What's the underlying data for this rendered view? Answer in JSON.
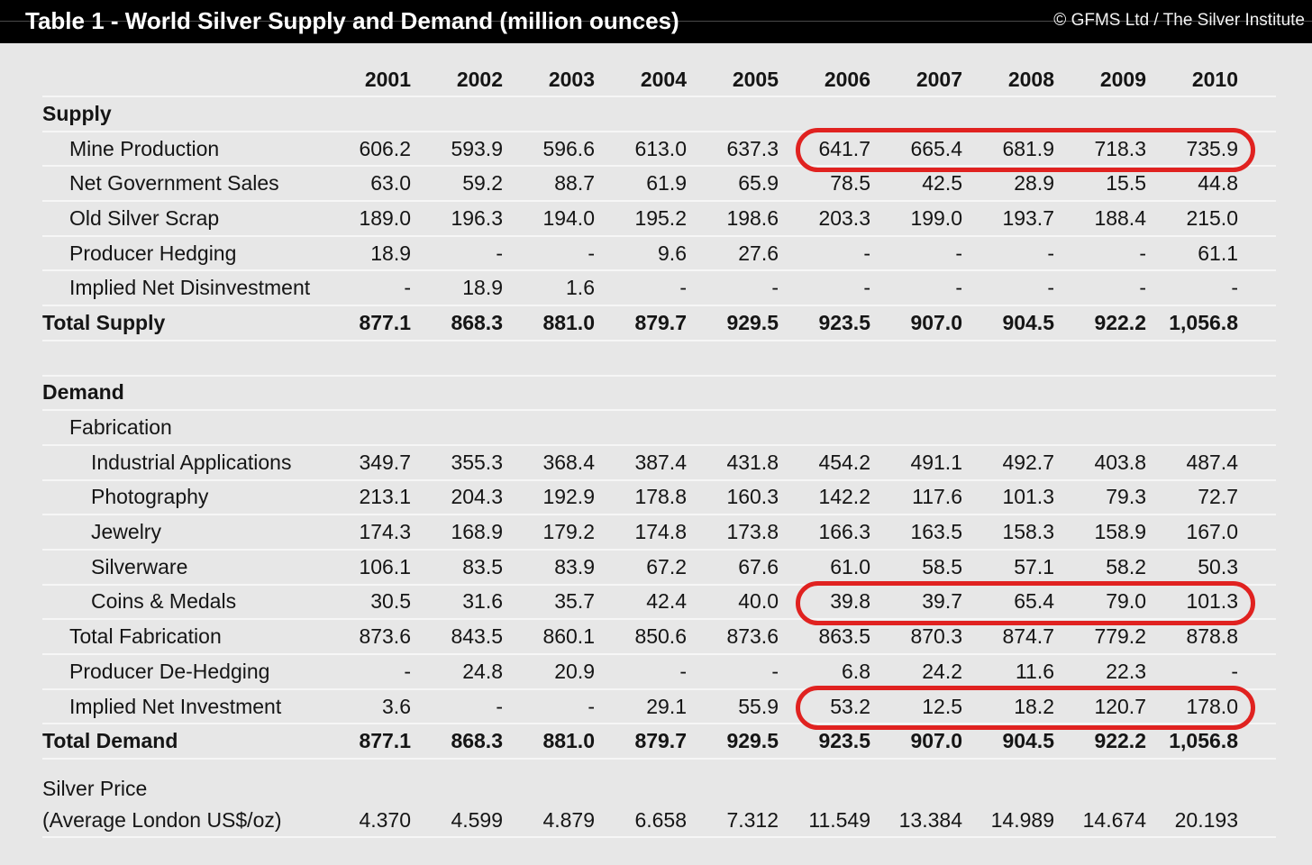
{
  "header": {
    "title": "Table 1 - World Silver Supply and Demand (million ounces)",
    "copyright": "© GFMS Ltd / The Silver Institute"
  },
  "colors": {
    "page_bg": "#e7e7e7",
    "header_bg": "#000000",
    "highlight_red": "#e02220"
  },
  "table": {
    "years": [
      "2001",
      "2002",
      "2003",
      "2004",
      "2005",
      "2006",
      "2007",
      "2008",
      "2009",
      "2010"
    ],
    "rows": [
      {
        "type": "years"
      },
      {
        "type": "section",
        "label": "Supply"
      },
      {
        "type": "data",
        "indent": 1,
        "label": "Mine Production",
        "highlight": true,
        "values": [
          "606.2",
          "593.9",
          "596.6",
          "613.0",
          "637.3",
          "641.7",
          "665.4",
          "681.9",
          "718.3",
          "735.9"
        ]
      },
      {
        "type": "data",
        "indent": 1,
        "label": "Net Government Sales",
        "values": [
          "63.0",
          "59.2",
          "88.7",
          "61.9",
          "65.9",
          "78.5",
          "42.5",
          "28.9",
          "15.5",
          "44.8"
        ]
      },
      {
        "type": "data",
        "indent": 1,
        "label": "Old Silver Scrap",
        "values": [
          "189.0",
          "196.3",
          "194.0",
          "195.2",
          "198.6",
          "203.3",
          "199.0",
          "193.7",
          "188.4",
          "215.0"
        ]
      },
      {
        "type": "data",
        "indent": 1,
        "label": "Producer Hedging",
        "values": [
          "18.9",
          "-",
          "-",
          "9.6",
          "27.6",
          "-",
          "-",
          "-",
          "-",
          "61.1"
        ]
      },
      {
        "type": "data",
        "indent": 1,
        "label": "Implied Net Disinvestment",
        "values": [
          "-",
          "18.9",
          "1.6",
          "-",
          "-",
          "-",
          "-",
          "-",
          "-",
          "-"
        ]
      },
      {
        "type": "total",
        "label": "Total Supply",
        "values": [
          "877.1",
          "868.3",
          "881.0",
          "879.7",
          "929.5",
          "923.5",
          "907.0",
          "904.5",
          "922.2",
          "1,056.8"
        ]
      },
      {
        "type": "spacer"
      },
      {
        "type": "section",
        "label": "Demand"
      },
      {
        "type": "data",
        "indent": 1,
        "label": "Fabrication"
      },
      {
        "type": "data",
        "indent": 2,
        "label": "Industrial Applications",
        "values": [
          "349.7",
          "355.3",
          "368.4",
          "387.4",
          "431.8",
          "454.2",
          "491.1",
          "492.7",
          "403.8",
          "487.4"
        ]
      },
      {
        "type": "data",
        "indent": 2,
        "label": "Photography",
        "values": [
          "213.1",
          "204.3",
          "192.9",
          "178.8",
          "160.3",
          "142.2",
          "117.6",
          "101.3",
          "79.3",
          "72.7"
        ]
      },
      {
        "type": "data",
        "indent": 2,
        "label": "Jewelry",
        "values": [
          "174.3",
          "168.9",
          "179.2",
          "174.8",
          "173.8",
          "166.3",
          "163.5",
          "158.3",
          "158.9",
          "167.0"
        ]
      },
      {
        "type": "data",
        "indent": 2,
        "label": "Silverware",
        "values": [
          "106.1",
          "83.5",
          "83.9",
          "67.2",
          "67.6",
          "61.0",
          "58.5",
          "57.1",
          "58.2",
          "50.3"
        ]
      },
      {
        "type": "data",
        "indent": 2,
        "label": "Coins & Medals",
        "highlight": true,
        "values": [
          "30.5",
          "31.6",
          "35.7",
          "42.4",
          "40.0",
          "39.8",
          "39.7",
          "65.4",
          "79.0",
          "101.3"
        ]
      },
      {
        "type": "data",
        "indent": 1,
        "label": "Total Fabrication",
        "values": [
          "873.6",
          "843.5",
          "860.1",
          "850.6",
          "873.6",
          "863.5",
          "870.3",
          "874.7",
          "779.2",
          "878.8"
        ]
      },
      {
        "type": "data",
        "indent": 1,
        "label": "Producer De-Hedging",
        "values": [
          "-",
          "24.8",
          "20.9",
          "-",
          "-",
          "6.8",
          "24.2",
          "11.6",
          "22.3",
          "-"
        ]
      },
      {
        "type": "data",
        "indent": 1,
        "label": "Implied Net Investment",
        "highlight": true,
        "values": [
          "3.6",
          "-",
          "-",
          "29.1",
          "55.9",
          "53.2",
          "12.5",
          "18.2",
          "120.7",
          "178.0"
        ]
      },
      {
        "type": "total",
        "label": "Total Demand",
        "values": [
          "877.1",
          "868.3",
          "881.0",
          "879.7",
          "929.5",
          "923.5",
          "907.0",
          "904.5",
          "922.2",
          "1,056.8"
        ]
      },
      {
        "type": "spacer-small"
      },
      {
        "type": "price-label",
        "label": "Silver Price"
      },
      {
        "type": "price-values",
        "label": "(Average London US$/oz)",
        "values": [
          "4.370",
          "4.599",
          "4.879",
          "6.658",
          "7.312",
          "11.549",
          "13.384",
          "14.989",
          "14.674",
          "20.193"
        ]
      }
    ]
  }
}
